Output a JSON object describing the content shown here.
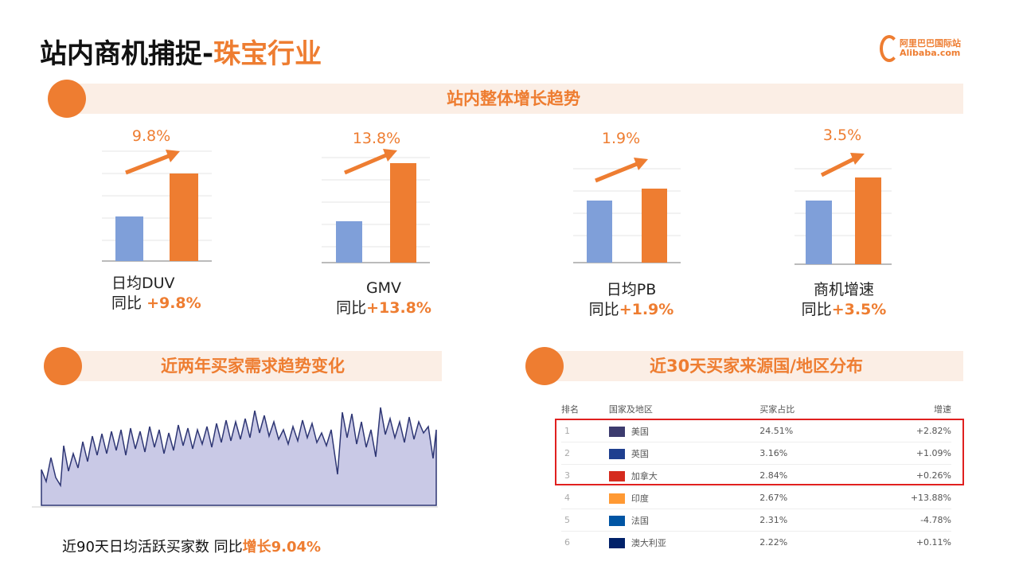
{
  "header": {
    "title": "站内商机捕捉-",
    "title_highlight": "珠宝行业",
    "logo_cn": "阿里巴巴国际站",
    "logo_en": "Alibaba.com"
  },
  "growth": {
    "heading": "站内整体增长趋势",
    "metrics": [
      {
        "growth": "9.8%",
        "name": "日均DUV",
        "yoy_label": "同比",
        "yoy": "+9.8%"
      },
      {
        "growth": "13.8%",
        "name": "GMV",
        "yoy_label": "同比",
        "yoy": "+13.8%"
      },
      {
        "growth": "1.9%",
        "name": "日均PB",
        "yoy_label": "同比",
        "yoy": "+1.9%"
      },
      {
        "growth": "3.5%",
        "name": "商机增速",
        "yoy_label": "同比",
        "yoy": "+3.5%"
      }
    ]
  },
  "trend": {
    "heading": "近两年买家需求趋势变化",
    "caption": "近90天日均活跃买家数 同比",
    "caption_highlight": "增长9.04%"
  },
  "distribution": {
    "heading": "近30天买家来源国/地区分布",
    "table": {
      "columns": [
        "排名",
        "国家及地区",
        "买家占比",
        "增速"
      ],
      "rows": [
        [
          "1",
          "美国",
          "24.51%",
          "+2.82%"
        ],
        [
          "2",
          "英国",
          "3.16%",
          "+1.09%"
        ],
        [
          "3",
          "加拿大",
          "2.84%",
          "+0.26%"
        ],
        [
          "4",
          "印度",
          "2.67%",
          "+13.88%"
        ],
        [
          "5",
          "法国",
          "2.31%",
          "-4.78%"
        ],
        [
          "6",
          "澳大利亚",
          "2.22%",
          "+0.11%"
        ]
      ]
    }
  }
}
